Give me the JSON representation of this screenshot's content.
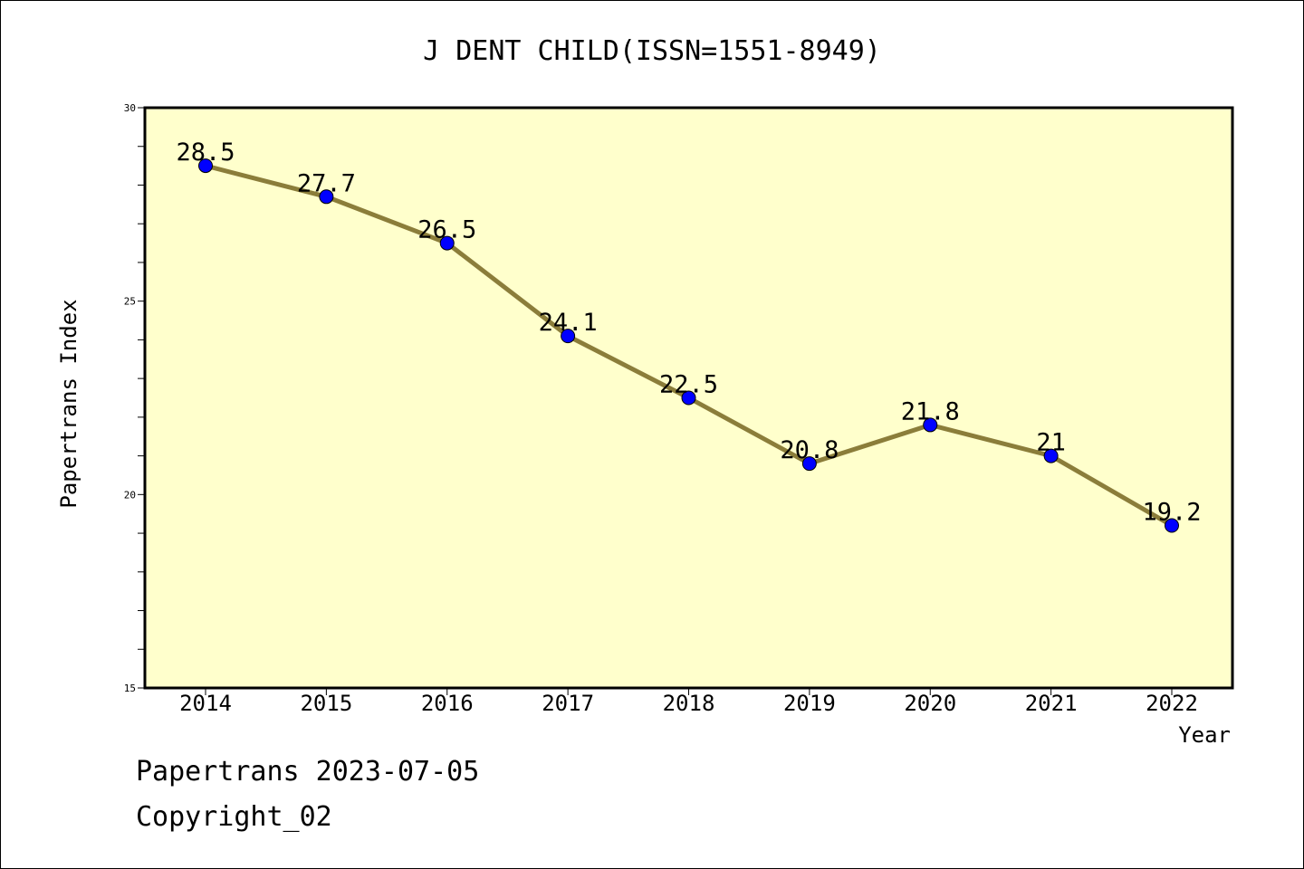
{
  "chart_data": {
    "type": "line",
    "title": "J DENT CHILD(ISSN=1551-8949)",
    "xlabel": "Year",
    "ylabel": "Papertrans Index",
    "categories": [
      "2014",
      "2015",
      "2016",
      "2017",
      "2018",
      "2019",
      "2020",
      "2021",
      "2022"
    ],
    "values": [
      28.5,
      27.7,
      26.5,
      24.1,
      22.5,
      20.8,
      21.8,
      21,
      19.2
    ],
    "value_labels": [
      "28.5",
      "27.7",
      "26.5",
      "24.1",
      "22.5",
      "20.8",
      "21.8",
      "21",
      "19.2"
    ],
    "ylim": [
      15,
      30
    ],
    "y_major_ticks": [
      15,
      20,
      25,
      30
    ],
    "y_tick_labels": [
      "15",
      "20",
      "25",
      "30"
    ],
    "grid": false,
    "legend": "none",
    "colors": {
      "plot_background": "#ffffcc",
      "line": "#8b7d3a",
      "marker": "#0000ff"
    }
  },
  "footer": {
    "date_line": "Papertrans 2023-07-05",
    "copyright": "Copyright_02"
  }
}
